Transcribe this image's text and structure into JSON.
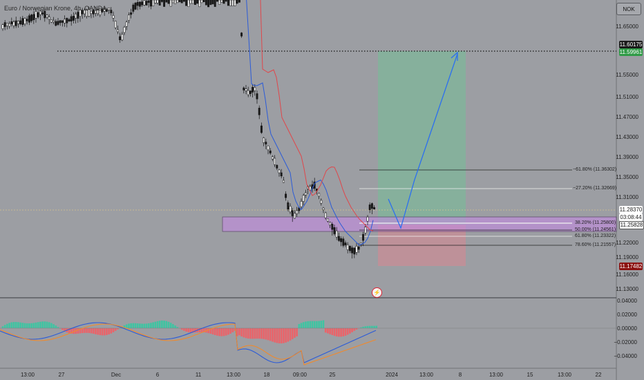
{
  "header": {
    "title": "Euro / Norwegian Krone, 4h, OANDA",
    "currency": "NOK"
  },
  "price_axis": {
    "labels": [
      "11.65000",
      "11.55000",
      "11.51000",
      "11.47000",
      "11.43000",
      "11.39000",
      "11.35000",
      "11.31000",
      "11.22000",
      "11.19000",
      "11.16000",
      "11.13000"
    ],
    "tags": {
      "target": "11.60175",
      "target2": "11.59961",
      "current": "11.28370",
      "countdown": "03:08:44",
      "fib": "11.25828",
      "stop": "11.17482"
    }
  },
  "indicator_axis": {
    "labels": [
      "0.04000",
      "0.02000",
      "0.00000",
      "−0.02000",
      "−0.04000"
    ]
  },
  "time_axis": {
    "labels": [
      "13:00",
      "27",
      "Dec",
      "6",
      "11",
      "13:00",
      "18",
      "09:00",
      "25",
      "2024",
      "13:00",
      "8",
      "13:00",
      "15",
      "13:00",
      "22"
    ]
  },
  "fib_levels": [
    {
      "label": "−61.80% (11.36302)"
    },
    {
      "label": "−27.20% (11.32669)"
    },
    {
      "label": "38.20% (11.25800)"
    },
    {
      "label": "50.00% (11.24561)"
    },
    {
      "label": "61.80% (11.23322)"
    },
    {
      "label": "78.60% (11.21557)"
    }
  ],
  "colors": {
    "background": "#9c9ea3",
    "bull": "#ffffff",
    "bear": "#ffffff",
    "ema_fast": "#2b5bd8",
    "ema_slow": "#e0464a",
    "zone": "#c58be3",
    "target_fill": "#7fb59a",
    "stop_fill": "#c98c95",
    "arrow": "#2b6ff0",
    "hist_pos": "#34c9a2",
    "hist_neg": "#f45c63"
  },
  "icons": {
    "event": "lightning-icon"
  }
}
